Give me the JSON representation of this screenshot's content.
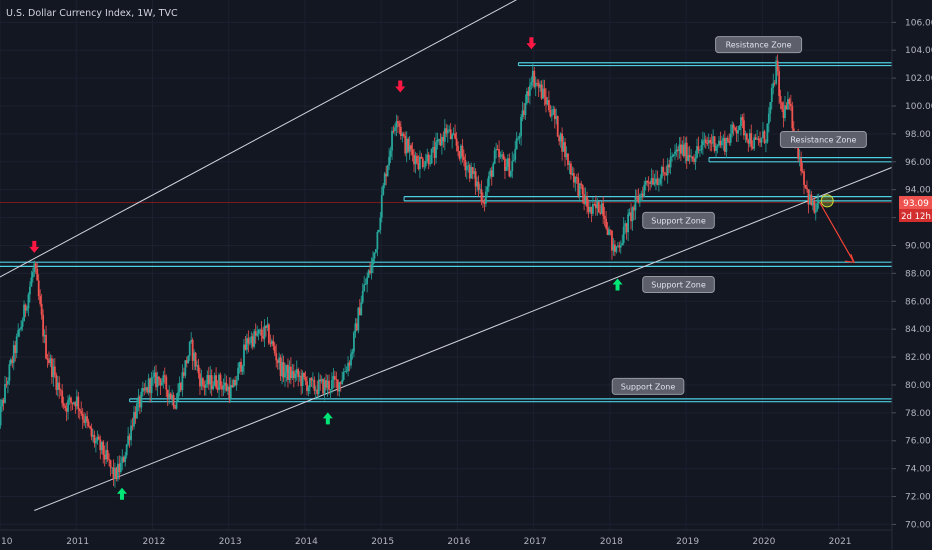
{
  "header": {
    "title": "U.S. Dollar Currency Index, 1W, TVC"
  },
  "colors": {
    "background": "#131722",
    "up": "#26a69a",
    "down": "#ef5350",
    "zone": "#4dd0e1",
    "trendline": "#d1d4dc",
    "arrow_up": "#00e676",
    "arrow_down": "#ff1744",
    "price_tag": "#ef5350"
  },
  "chart_data": {
    "type": "candlestick",
    "title": "U.S. Dollar Currency Index, 1W, TVC",
    "x_axis": {
      "min": 2010.0,
      "max": 2021.7,
      "ticks": [
        "10",
        "2011",
        "2012",
        "2013",
        "2014",
        "2015",
        "2016",
        "2017",
        "2018",
        "2019",
        "2020",
        "2021"
      ]
    },
    "y_axis": {
      "min": 69.6,
      "max": 107.6,
      "ticks": [
        "70.00",
        "72.00",
        "74.00",
        "76.00",
        "78.00",
        "80.00",
        "82.00",
        "84.00",
        "86.00",
        "88.00",
        "90.00",
        "92.00",
        "94.00",
        "96.00",
        "98.00",
        "100.00",
        "102.00",
        "104.00",
        "106.00"
      ]
    },
    "price_series": {
      "x": [
        2009.95,
        2010.1,
        2010.3,
        2010.45,
        2010.6,
        2010.85,
        2011.0,
        2011.2,
        2011.35,
        2011.5,
        2011.6,
        2011.75,
        2011.95,
        2012.1,
        2012.3,
        2012.5,
        2012.65,
        2012.85,
        2013.05,
        2013.25,
        2013.5,
        2013.7,
        2013.9,
        2014.1,
        2014.3,
        2014.45,
        2014.6,
        2014.75,
        2014.9,
        2015.05,
        2015.2,
        2015.3,
        2015.5,
        2015.7,
        2015.85,
        2016.0,
        2016.2,
        2016.35,
        2016.5,
        2016.7,
        2016.85,
        2016.97,
        2017.1,
        2017.25,
        2017.45,
        2017.6,
        2017.75,
        2017.9,
        2018.05,
        2018.15,
        2018.3,
        2018.5,
        2018.7,
        2018.9,
        2019.1,
        2019.3,
        2019.5,
        2019.7,
        2019.9,
        2020.05,
        2020.18,
        2020.25,
        2020.35,
        2020.5,
        2020.6,
        2020.68,
        2020.75
      ],
      "y": [
        76.5,
        80.5,
        84.8,
        88.5,
        82.5,
        78.5,
        79.0,
        76.3,
        75.2,
        73.4,
        74.3,
        77.8,
        80.0,
        80.5,
        78.8,
        82.8,
        80.0,
        80.3,
        79.5,
        83.2,
        83.8,
        81.0,
        80.6,
        79.8,
        80.0,
        80.2,
        82.0,
        86.5,
        89.0,
        95.0,
        99.5,
        97.3,
        96.0,
        96.6,
        98.3,
        97.0,
        95.0,
        93.3,
        96.5,
        95.5,
        99.0,
        102.3,
        101.0,
        99.5,
        96.0,
        94.0,
        92.3,
        93.0,
        89.5,
        90.5,
        92.5,
        94.8,
        95.0,
        96.9,
        96.5,
        97.5,
        97.3,
        98.8,
        97.2,
        97.9,
        102.8,
        99.5,
        100.0,
        96.0,
        93.5,
        92.5,
        93.1
      ],
      "current_price": "93.09",
      "countdown": "2d 12h"
    },
    "horizontal_zones": [
      {
        "y_top": 103.1,
        "y_bottom": 102.9,
        "x_start": 2016.8,
        "x_end": 2021.7
      },
      {
        "y_top": 96.3,
        "y_bottom": 96.0,
        "x_start": 2019.3,
        "x_end": 2021.7
      },
      {
        "y_top": 93.5,
        "y_bottom": 93.2,
        "x_start": 2015.3,
        "x_end": 2021.7
      },
      {
        "y_top": 88.8,
        "y_bottom": 88.5,
        "x_start": 2009.95,
        "x_end": 2021.7
      },
      {
        "y_top": 79.0,
        "y_bottom": 78.8,
        "x_start": 2011.7,
        "x_end": 2021.7
      }
    ],
    "price_line": {
      "y": 93.09
    },
    "trendlines": [
      {
        "x1": 2009.95,
        "y1": 87.6,
        "x2": 2018.2,
        "y2": 111.8
      },
      {
        "x1": 2010.45,
        "y1": 71.0,
        "x2": 2021.7,
        "y2": 95.6
      }
    ],
    "annotations": [
      {
        "text": "Resistance Zone",
        "x": 2019.95,
        "y": 104.4
      },
      {
        "text": "Resistance Zone",
        "x": 2020.8,
        "y": 97.6
      },
      {
        "text": "Support Zone",
        "x": 2018.9,
        "y": 91.8
      },
      {
        "text": "Support Zone",
        "x": 2018.9,
        "y": 87.2
      },
      {
        "text": "Support Zone",
        "x": 2018.5,
        "y": 79.9
      }
    ],
    "arrows_down": [
      {
        "x": 2010.45,
        "y": 89.9
      },
      {
        "x": 2015.25,
        "y": 101.4
      },
      {
        "x": 2016.97,
        "y": 104.5
      }
    ],
    "arrows_up": [
      {
        "x": 2011.6,
        "y": 72.2
      },
      {
        "x": 2014.3,
        "y": 77.6
      },
      {
        "x": 2018.1,
        "y": 87.2
      }
    ],
    "projection": {
      "x1": 2020.75,
      "y1": 93.1,
      "x2": 2021.2,
      "y2": 88.8
    },
    "highlight_circle": {
      "x": 2020.85,
      "y": 93.2
    }
  }
}
